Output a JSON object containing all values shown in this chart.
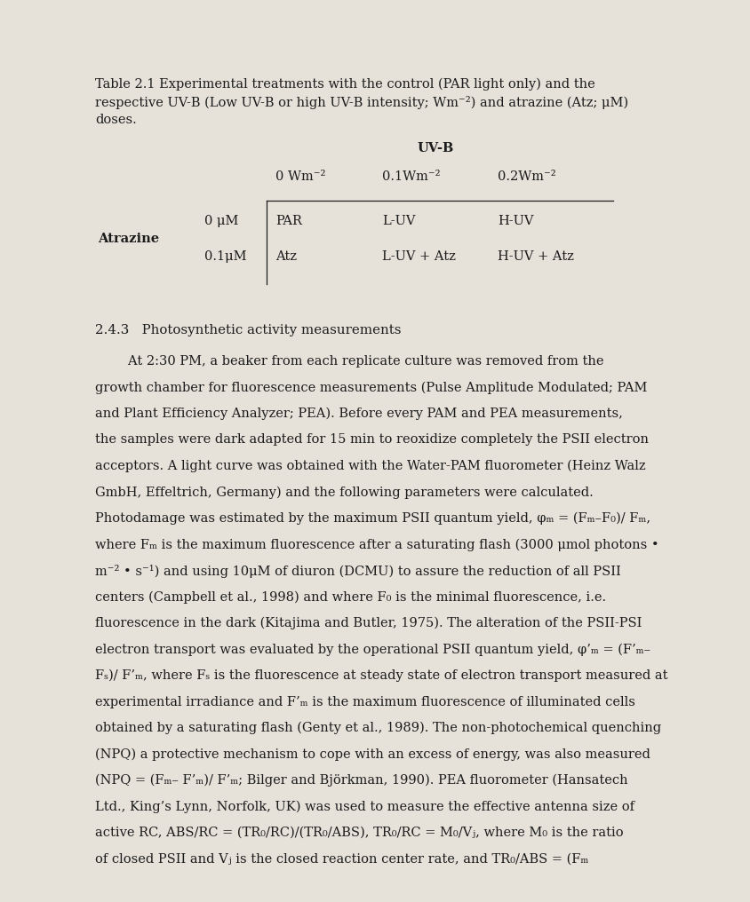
{
  "bg_color": "#e6e2da",
  "title_line1": "Table 2.1 Experimental treatments with the control (PAR light only) and the",
  "title_line2": "respective UV-B (Low UV-B or high UV-B intensity; Wm⁻²) and atrazine (Atz; μM)",
  "title_line3": "doses.",
  "uvb_header": "UV-B",
  "col0_header": "0 Wm⁻²",
  "col1_header": "0.1Wm⁻²",
  "col2_header": "0.2Wm⁻²",
  "row_label": "Atrazine",
  "row1_atrazine": "0 μM",
  "row2_atrazine": "0.1μM",
  "row1_col0": "PAR",
  "row1_col1": "L-UV",
  "row1_col2": "H-UV",
  "row2_col0": "Atz",
  "row2_col1": "L-UV + Atz",
  "row2_col2": "H-UV + Atz",
  "section_header": "2.4.3   Photosynthetic activity measurements",
  "body_lines": [
    "        At 2:30 PM, a beaker from each replicate culture was removed from the",
    "growth chamber for fluorescence measurements (Pulse Amplitude Modulated; PAM",
    "and Plant Efficiency Analyzer; PEA). Before every PAM and PEA measurements,",
    "the samples were dark adapted for 15 min to reoxidize completely the PSII electron",
    "acceptors. A light curve was obtained with the Water-PAM fluorometer (Heinz Walz",
    "GmbH, Effeltrich, Germany) and the following parameters were calculated.",
    "Photodamage was estimated by the maximum PSII quantum yield, φₘ = (Fₘ–F₀)/ Fₘ,",
    "where Fₘ is the maximum fluorescence after a saturating flash (3000 μmol photons •",
    "m⁻² • s⁻¹) and using 10μM of diuron (DCMU) to assure the reduction of all PSII",
    "centers (Campbell et al., 1998) and where F₀ is the minimal fluorescence, i.e.",
    "fluorescence in the dark (Kitajima and Butler, 1975). The alteration of the PSII-PSI",
    "electron transport was evaluated by the operational PSII quantum yield, φ’ₘ = (F’ₘ–",
    "Fₛ)/ F’ₘ, where Fₛ is the fluorescence at steady state of electron transport measured at",
    "experimental irradiance and F’ₘ is the maximum fluorescence of illuminated cells",
    "obtained by a saturating flash (Genty et al., 1989). The non-photochemical quenching",
    "(NPQ) a protective mechanism to cope with an excess of energy, was also measured",
    "(NPQ = (Fₘ– F’ₘ)/ F’ₘ; Bilger and Björkman, 1990). PEA fluorometer (Hansatech",
    "Ltd., King’s Lynn, Norfolk, UK) was used to measure the effective antenna size of",
    "active RC, ABS/RC = (TR₀/RC)/(TR₀/ABS), TR₀/RC = M₀/Vⱼ, where M₀ is the ratio",
    "of closed PSII and Vⱼ is the closed reaction center rate, and TR₀/ABS = (Fₘ"
  ],
  "text_color": "#1c1c1c",
  "font_family": "DejaVu Serif",
  "fs_title": 10.5,
  "fs_table": 10.5,
  "fs_section": 10.8,
  "fs_body": 10.5
}
